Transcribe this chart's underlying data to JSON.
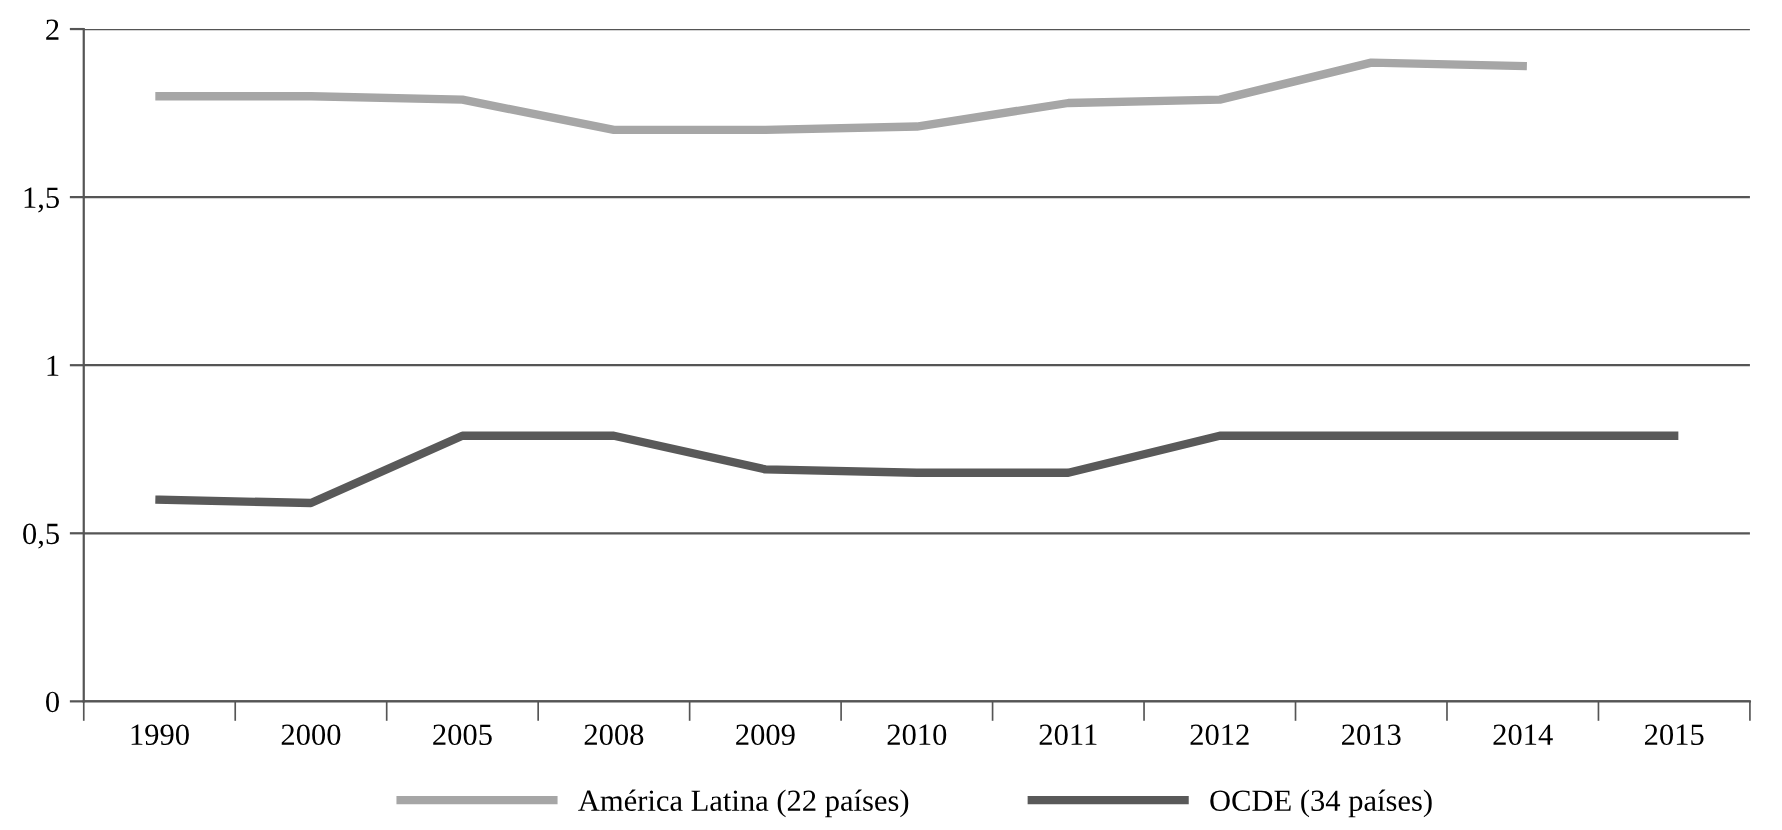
{
  "chart_data": {
    "type": "line",
    "categories": [
      "1990",
      "2000",
      "2005",
      "2008",
      "2009",
      "2010",
      "2011",
      "2012",
      "2013",
      "2014",
      "2015"
    ],
    "series": [
      {
        "name": "América Latina (22 países)",
        "color": "#a6a6a6",
        "values": [
          1.8,
          1.8,
          1.79,
          1.7,
          1.7,
          1.71,
          1.78,
          1.79,
          1.9,
          1.89,
          null
        ]
      },
      {
        "name": "OCDE (34 países)",
        "color": "#595959",
        "values": [
          0.6,
          0.59,
          0.79,
          0.79,
          0.69,
          0.68,
          0.68,
          0.79,
          0.79,
          0.79,
          0.79
        ]
      }
    ],
    "ylim": [
      0,
      2
    ],
    "yticks": [
      0,
      {
        "value": 0.5,
        "label": "0,5"
      },
      1,
      {
        "value": 1.5,
        "label": "1,5"
      },
      2
    ],
    "grid": "y",
    "legend": "bottom",
    "marker": "none",
    "line_style": "solid"
  }
}
